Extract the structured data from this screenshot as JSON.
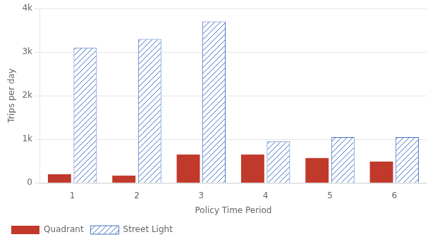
{
  "chart_data": {
    "type": "bar",
    "categories": [
      1,
      2,
      3,
      4,
      5,
      6
    ],
    "series": [
      {
        "name": "Quadrant",
        "color": "#c0392b",
        "values": [
          200,
          170,
          650,
          650,
          570,
          490
        ]
      },
      {
        "name": "Street Light",
        "color": "#4472c4",
        "values": [
          3100,
          3300,
          3700,
          950,
          1050,
          1050
        ]
      }
    ],
    "xlabel": "Policy Time Period",
    "ylabel": "Trips per day",
    "ylim": [
      0,
      4000
    ],
    "yticks": [
      0,
      {
        "value": 1000,
        "label": "1k"
      },
      {
        "value": 2000,
        "label": "2k"
      },
      {
        "value": 3000,
        "label": "3k"
      },
      {
        "value": 4000,
        "label": "4k"
      }
    ],
    "grid": true,
    "legend": "bottom"
  }
}
